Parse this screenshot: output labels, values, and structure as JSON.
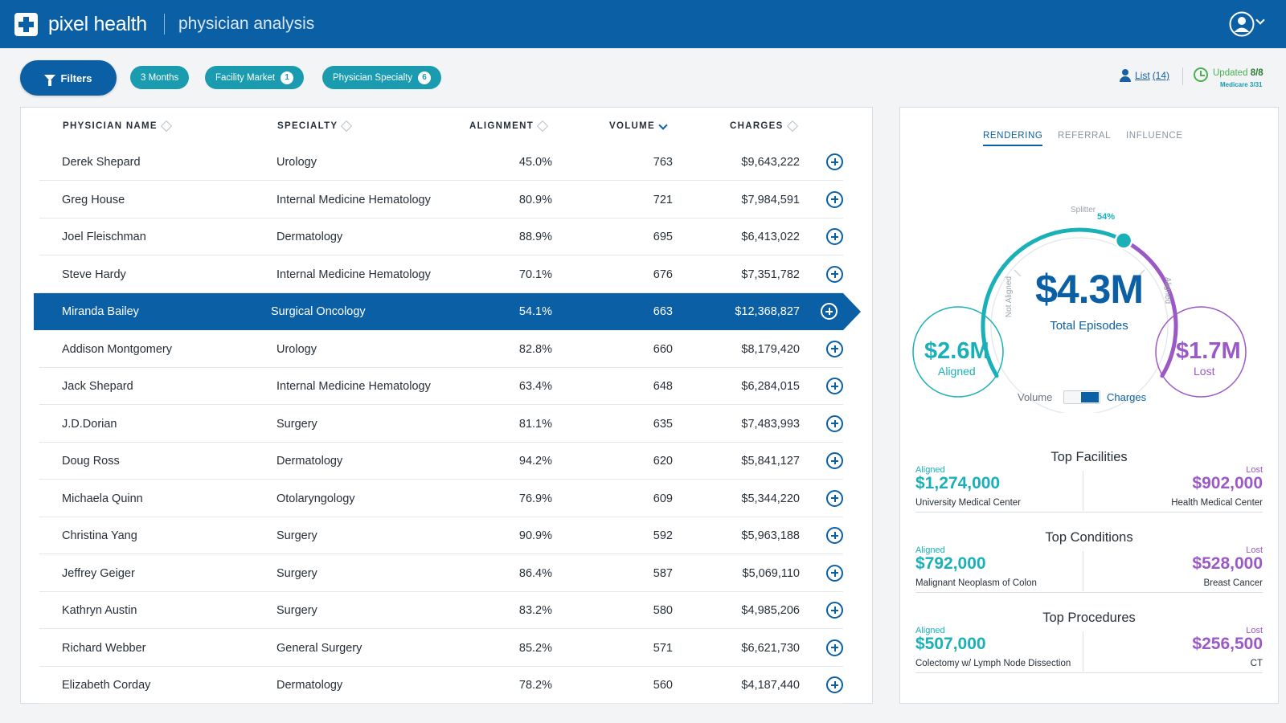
{
  "app": {
    "brand": "pixel health",
    "page_title": "physician analysis"
  },
  "filters": {
    "button_label": "Filters",
    "chips": [
      {
        "label": "3 Months",
        "count": null
      },
      {
        "label": "Facility Market",
        "count": "1"
      },
      {
        "label": "Physician Specialty",
        "count": "6"
      }
    ]
  },
  "list_link": {
    "label": "List",
    "count": "(14)"
  },
  "updated": {
    "label": "Updated",
    "date": "8/8",
    "sub": "Medicare 3/31"
  },
  "table": {
    "headers": {
      "name": "PHYSICIAN NAME",
      "specialty": "SPECIALTY",
      "alignment": "ALIGNMENT",
      "volume": "VOLUME",
      "charges": "CHARGES"
    },
    "sorted_by": "volume",
    "selected_index": 4,
    "rows": [
      {
        "name": "Derek Shepard",
        "specialty": "Urology",
        "alignment": "45.0%",
        "volume": "763",
        "charges": "$9,643,222"
      },
      {
        "name": "Greg House",
        "specialty": "Internal Medicine Hematology",
        "alignment": "80.9%",
        "volume": "721",
        "charges": "$7,984,591"
      },
      {
        "name": "Joel Fleischman",
        "specialty": "Dermatology",
        "alignment": "88.9%",
        "volume": "695",
        "charges": "$6,413,022"
      },
      {
        "name": "Steve Hardy",
        "specialty": "Internal Medicine Hematology",
        "alignment": "70.1%",
        "volume": "676",
        "charges": "$7,351,782"
      },
      {
        "name": "Miranda Bailey",
        "specialty": "Surgical Oncology",
        "alignment": "54.1%",
        "volume": "663",
        "charges": "$12,368,827"
      },
      {
        "name": "Addison Montgomery",
        "specialty": "Urology",
        "alignment": "82.8%",
        "volume": "660",
        "charges": "$8,179,420"
      },
      {
        "name": "Jack Shepard",
        "specialty": "Internal Medicine Hematology",
        "alignment": "63.4%",
        "volume": "648",
        "charges": "$6,284,015"
      },
      {
        "name": "J.D.Dorian",
        "specialty": "Surgery",
        "alignment": "81.1%",
        "volume": "635",
        "charges": "$7,483,993"
      },
      {
        "name": "Doug Ross",
        "specialty": "Dermatology",
        "alignment": "94.2%",
        "volume": "620",
        "charges": "$5,841,127"
      },
      {
        "name": "Michaela Quinn",
        "specialty": "Otolaryngology",
        "alignment": "76.9%",
        "volume": "609",
        "charges": "$5,344,220"
      },
      {
        "name": "Christina Yang",
        "specialty": "Surgery",
        "alignment": "90.9%",
        "volume": "592",
        "charges": "$5,963,188"
      },
      {
        "name": "Jeffrey Geiger",
        "specialty": "Surgery",
        "alignment": "86.4%",
        "volume": "587",
        "charges": "$5,069,110"
      },
      {
        "name": "Kathryn Austin",
        "specialty": "Surgery",
        "alignment": "83.2%",
        "volume": "580",
        "charges": "$4,985,206"
      },
      {
        "name": "Richard Webber",
        "specialty": "General Surgery",
        "alignment": "85.2%",
        "volume": "571",
        "charges": "$6,621,730"
      },
      {
        "name": "Elizabeth Corday",
        "specialty": "Dermatology",
        "alignment": "78.2%",
        "volume": "560",
        "charges": "$4,187,440"
      }
    ]
  },
  "side": {
    "tabs": [
      {
        "label": "RENDERING",
        "active": true
      },
      {
        "label": "REFERRAL",
        "active": false
      },
      {
        "label": "INFLUENCE",
        "active": false
      }
    ],
    "gauge": {
      "total_value": "$4.3M",
      "total_label": "Total Episodes",
      "aligned_value": "$2.6M",
      "aligned_label": "Aligned",
      "lost_value": "$1.7M",
      "lost_label": "Lost",
      "splitter_label": "Splitter",
      "splitter_pct": "54%",
      "splitter_fraction": 0.54,
      "left_arc_label": "Not Aligned",
      "right_arc_label": "Aligned"
    },
    "toggle": {
      "left": "Volume",
      "right": "Charges",
      "selected": "Charges"
    },
    "sections": [
      {
        "title": "Top Facilities",
        "aligned_label": "Aligned",
        "aligned_value": "$1,274,000",
        "aligned_name": "University Medical Center",
        "lost_label": "Lost",
        "lost_value": "$902,000",
        "lost_name": "Health Medical Center"
      },
      {
        "title": "Top Conditions",
        "aligned_label": "Aligned",
        "aligned_value": "$792,000",
        "aligned_name": "Malignant Neoplasm of Colon",
        "lost_label": "Lost",
        "lost_value": "$528,000",
        "lost_name": "Breast Cancer"
      },
      {
        "title": "Top Procedures",
        "aligned_label": "Aligned",
        "aligned_value": "$507,000",
        "aligned_name": "Colectomy w/ Lymph Node Dissection",
        "lost_label": "Lost",
        "lost_value": "$256,500",
        "lost_name": "CT"
      }
    ]
  },
  "colors": {
    "primary": "#0b5fa5",
    "teal": "#1ab0b8",
    "purple": "#9b59c6",
    "chip": "#1a9bb0",
    "updated": "#4caf50"
  }
}
